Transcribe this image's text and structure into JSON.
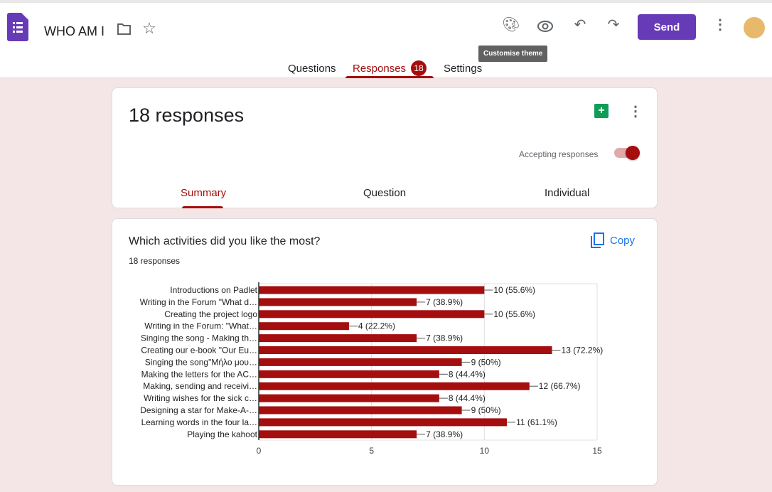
{
  "header": {
    "title": "WHO AM I",
    "send_label": "Send",
    "tooltip": "Customise theme",
    "tabs": [
      {
        "label": "Questions"
      },
      {
        "label": "Responses",
        "badge": "18"
      },
      {
        "label": "Settings"
      }
    ]
  },
  "summary": {
    "count_label": "18 responses",
    "accepting_label": "Accepting responses",
    "accepting": true,
    "tabs": [
      {
        "label": "Summary"
      },
      {
        "label": "Question"
      },
      {
        "label": "Individual"
      }
    ]
  },
  "question": {
    "title": "Which activities did you like the most?",
    "responses": "18 responses",
    "copy_label": "Copy"
  },
  "colors": {
    "accent": "#a50e0e",
    "purple": "#673ab7"
  },
  "chart_data": {
    "type": "bar",
    "orientation": "horizontal",
    "categories": [
      "Introductions on Padlet",
      "Writing in the Forum \"What d…",
      "Creating the project logo",
      "Writing in the Forum: \"What…",
      "Singing the song - Making th…",
      "Creating our e-book \"Our Eu…",
      "Singing the song\"Μήλο μου…",
      "Making the letters for the AC…",
      "Making, sending and receivi…",
      "Writing wishes for the sick c…",
      "Designing a star for Make-A-…",
      "Learning words in the four la…",
      "Playing the kahoot"
    ],
    "values": [
      10,
      7,
      10,
      4,
      7,
      13,
      9,
      8,
      12,
      8,
      9,
      11,
      7
    ],
    "data_labels": [
      "10 (55.6%)",
      "7 (38.9%)",
      "10 (55.6%)",
      "4 (22.2%)",
      "7 (38.9%)",
      "13 (72.2%)",
      "9 (50%)",
      "8 (44.4%)",
      "12 (66.7%)",
      "8 (44.4%)",
      "9 (50%)",
      "11 (61.1%)",
      "7 (38.9%)"
    ],
    "xticks": [
      "0",
      "5",
      "10",
      "15"
    ],
    "xlim": [
      0,
      15
    ],
    "color": "#a50e0e"
  }
}
